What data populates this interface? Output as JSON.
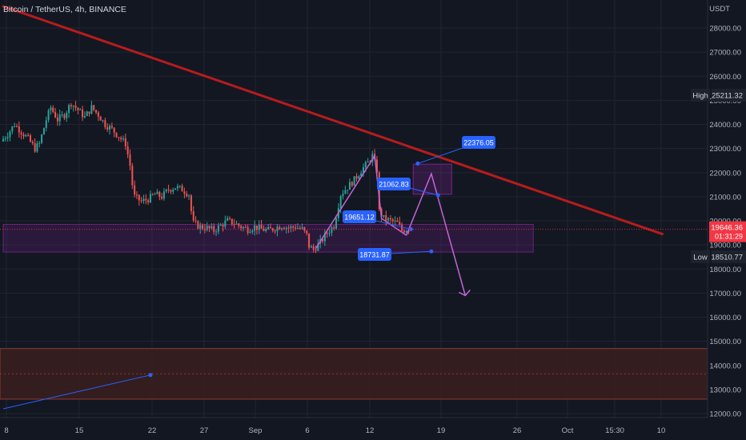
{
  "header": {
    "symbol_title": "Bitcoin / TetherUS, 4h, BINANCE"
  },
  "colors": {
    "background": "#131722",
    "grid": "#1f2430",
    "up_candle": "#26a69a",
    "down_candle": "#ef5350",
    "trendline": "#b71c1c",
    "zone_purple": "#9c27b0",
    "zone_brown": "#5d2a1e",
    "pattern_line": "#c264d6",
    "label_blue": "#2962ff",
    "axis_text": "#b2b5be",
    "price_tag_red": "#f23645",
    "tag_dark": "#1e222d"
  },
  "chart_data": {
    "type": "candlestick",
    "title": "Bitcoin / TetherUS, 4h, BINANCE",
    "ylabel": "USDT",
    "ylim": [
      11700,
      29200
    ],
    "y_ticks": [
      12000,
      13000,
      14000,
      15000,
      16000,
      17000,
      18000,
      19000,
      20000,
      21000,
      22000,
      23000,
      24000,
      25000,
      26000,
      27000,
      28000
    ],
    "y_tick_labels": [
      "12000.00",
      "13000.00",
      "14000.00",
      "15000.00",
      "16000.00",
      "17000.00",
      "18000.00",
      "19000.00",
      "20000.00",
      "21000.00",
      "22000.00",
      "23000.00",
      "24000.00",
      "25000.00",
      "26000.00",
      "27000.00",
      "28000.00"
    ],
    "x_tick_labels": [
      "8",
      "15",
      "22",
      "27",
      "Sep",
      "6",
      "12",
      "19",
      "26",
      "Oct",
      "15:30",
      "10"
    ],
    "price_path": [
      [
        0,
        23300
      ],
      [
        3,
        23600
      ],
      [
        6,
        24000
      ],
      [
        9,
        23700
      ],
      [
        12,
        23400
      ],
      [
        15,
        23000
      ],
      [
        17,
        23200
      ],
      [
        20,
        24200
      ],
      [
        22,
        24700
      ],
      [
        25,
        24200
      ],
      [
        28,
        24400
      ],
      [
        31,
        24900
      ],
      [
        34,
        24600
      ],
      [
        37,
        24300
      ],
      [
        40,
        24700
      ],
      [
        43,
        24400
      ],
      [
        46,
        24000
      ],
      [
        49,
        23800
      ],
      [
        52,
        23500
      ],
      [
        55,
        23200
      ],
      [
        57,
        22300
      ],
      [
        58,
        21500
      ],
      [
        59,
        21000
      ],
      [
        62,
        20800
      ],
      [
        65,
        20900
      ],
      [
        68,
        21100
      ],
      [
        71,
        21000
      ],
      [
        74,
        21300
      ],
      [
        77,
        21400
      ],
      [
        80,
        21300
      ],
      [
        83,
        21100
      ],
      [
        84,
        20400
      ],
      [
        85,
        19900
      ],
      [
        88,
        19750
      ],
      [
        91,
        19700
      ],
      [
        94,
        19600
      ],
      [
        97,
        19800
      ],
      [
        100,
        20000
      ],
      [
        103,
        19900
      ],
      [
        106,
        19750
      ],
      [
        109,
        19650
      ],
      [
        112,
        19750
      ],
      [
        115,
        19650
      ],
      [
        118,
        19600
      ],
      [
        121,
        19700
      ],
      [
        124,
        19800
      ],
      [
        127,
        19700
      ],
      [
        130,
        19750
      ],
      [
        133,
        19650
      ],
      [
        135,
        19400
      ],
      [
        136,
        18950
      ],
      [
        138,
        18800
      ],
      [
        141,
        19100
      ],
      [
        144,
        19500
      ],
      [
        147,
        19800
      ],
      [
        150,
        21100
      ],
      [
        153,
        21400
      ],
      [
        156,
        21700
      ],
      [
        159,
        22100
      ],
      [
        162,
        22400
      ],
      [
        164,
        22700
      ],
      [
        166,
        22100
      ],
      [
        167,
        20400
      ],
      [
        169,
        20100
      ],
      [
        172,
        20000
      ],
      [
        175,
        19900
      ],
      [
        177,
        19600
      ],
      [
        179,
        19650
      ]
    ],
    "resistance_trendline": [
      [
        0,
        28900
      ],
      [
        291,
        19450
      ]
    ],
    "support_zone": {
      "y_top": 19850,
      "y_bottom": 18700,
      "x_start": 0,
      "x_end": 234
    },
    "lower_zone": {
      "y_top": 14700,
      "y_bottom": 12600
    },
    "target_box": {
      "y_top": 22350,
      "y_bottom": 21100,
      "x_start": 181,
      "x_end": 198
    },
    "low_to_high_pattern": [
      [
        138,
        18850
      ],
      [
        164,
        22700
      ],
      [
        167,
        20100
      ],
      [
        178,
        19400
      ]
    ],
    "projection": [
      [
        178,
        19400
      ],
      [
        189,
        21950
      ],
      [
        204,
        16900
      ]
    ],
    "annotations": [
      {
        "label": "22376.05",
        "value": 22376.05
      },
      {
        "label": "21062.83",
        "value": 21062.83
      },
      {
        "label": "19651.12",
        "value": 19651.12
      },
      {
        "label": "18731.87",
        "value": 18731.87
      }
    ],
    "blue_trend": [
      [
        0,
        12200
      ],
      [
        65,
        13600
      ]
    ],
    "high": {
      "label": "High",
      "value": "25211.32",
      "y": 25211.32
    },
    "low": {
      "label": "Low",
      "value": "18510.77",
      "y": 18510.77
    },
    "last_price": {
      "value": "19646.36",
      "countdown": "01:31:29",
      "y": 19646.36
    }
  }
}
